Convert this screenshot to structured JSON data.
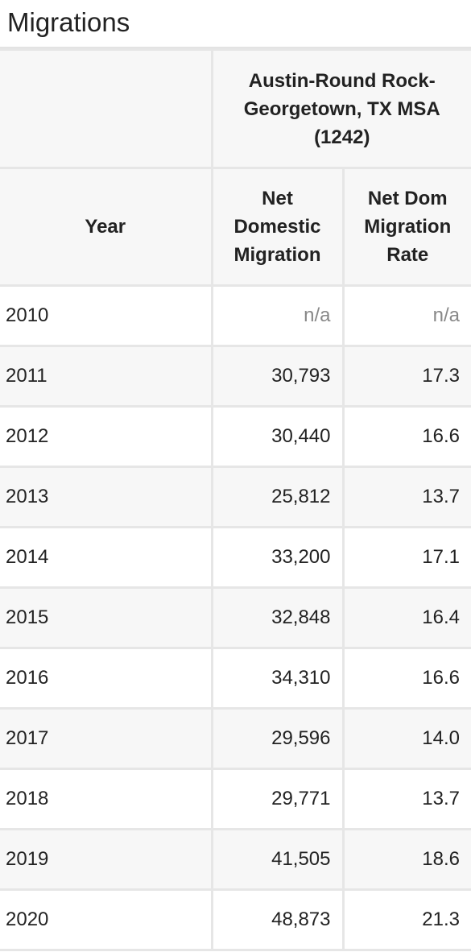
{
  "title": "Migrations",
  "region": "Austin-Round Rock-Georgetown, TX MSA (1242)",
  "columns": {
    "year": "Year",
    "net": "Net Domestic Migration",
    "rate": "Net Dom Migration Rate"
  },
  "rows": [
    {
      "year": "2010",
      "net": "n/a",
      "rate": "n/a"
    },
    {
      "year": "2011",
      "net": "30,793",
      "rate": "17.3"
    },
    {
      "year": "2012",
      "net": "30,440",
      "rate": "16.6"
    },
    {
      "year": "2013",
      "net": "25,812",
      "rate": "13.7"
    },
    {
      "year": "2014",
      "net": "33,200",
      "rate": "17.1"
    },
    {
      "year": "2015",
      "net": "32,848",
      "rate": "16.4"
    },
    {
      "year": "2016",
      "net": "34,310",
      "rate": "16.6"
    },
    {
      "year": "2017",
      "net": "29,596",
      "rate": "14.0"
    },
    {
      "year": "2018",
      "net": "29,771",
      "rate": "13.7"
    },
    {
      "year": "2019",
      "net": "41,505",
      "rate": "18.6"
    },
    {
      "year": "2020",
      "net": "48,873",
      "rate": "21.3"
    }
  ]
}
